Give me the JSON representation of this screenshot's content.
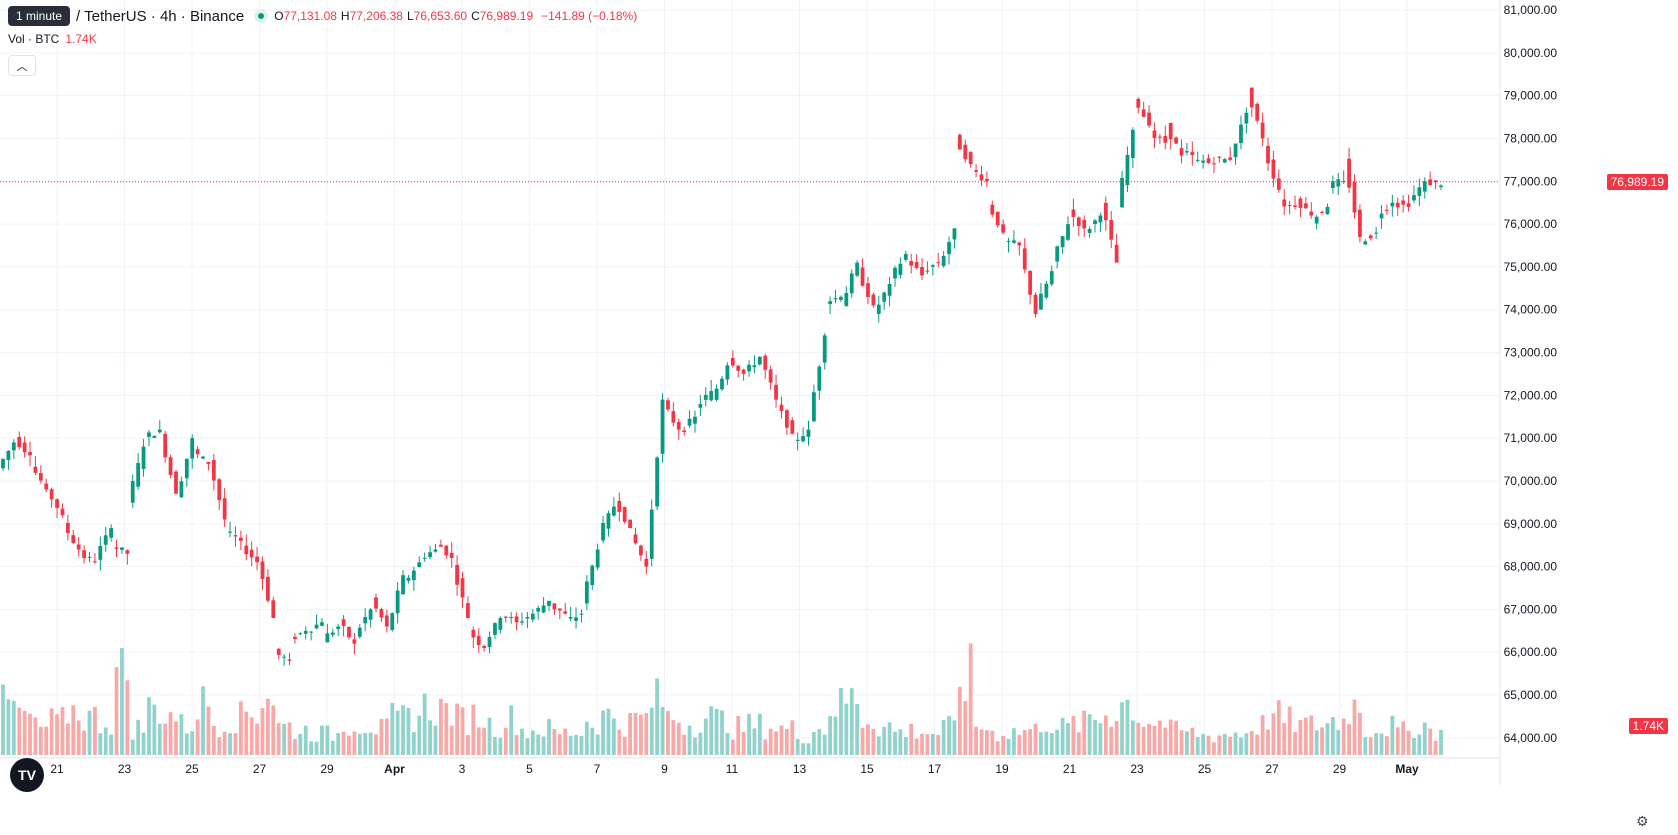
{
  "header": {
    "interval_badge": "1 minute",
    "symbol": "/ TetherUS · 4h · Binance",
    "open_label": "O",
    "open": "77,131.08",
    "high_label": "H",
    "high": "77,206.38",
    "low_label": "L",
    "low": "76,653.60",
    "close_label": "C",
    "close": "76,989.19",
    "change": "−141.89 (−0.18%)"
  },
  "volume_row": {
    "label": "Vol · BTC",
    "value": "1.74K"
  },
  "last_price_tag": "76,989.19",
  "volume_tag": "1.74K",
  "colors": {
    "up": "#089981",
    "down": "#f23645",
    "vol_up": "#92d2cc",
    "vol_down": "#f7a9a7",
    "grid": "#f0f3fa"
  },
  "icons": {
    "logo": "tradingview-logo-icon",
    "collapse": "chevron-up-icon",
    "settings": "gear-icon"
  },
  "chart_data": {
    "type": "candlestick",
    "ylim": [
      63600,
      81000
    ],
    "y_ticks": [
      "81,000.00",
      "80,000.00",
      "79,000.00",
      "78,000.00",
      "77,000.00",
      "76,000.00",
      "75,000.00",
      "74,000.00",
      "73,000.00",
      "72,000.00",
      "71,000.00",
      "70,000.00",
      "69,000.00",
      "68,000.00",
      "67,000.00",
      "66,000.00",
      "65,000.00",
      "64,000.00"
    ],
    "x_ticks": [
      "21",
      "23",
      "25",
      "27",
      "29",
      "Apr",
      "3",
      "5",
      "7",
      "9",
      "11",
      "13",
      "15",
      "17",
      "19",
      "21",
      "23",
      "25",
      "27",
      "29",
      "May"
    ],
    "last_price": 76989.19,
    "anchors": [
      [
        70300,
        70900
      ],
      [
        71000,
        70600
      ],
      [
        70400,
        69800
      ],
      [
        69800,
        69200
      ],
      [
        69000,
        68400
      ],
      [
        68300,
        68100
      ],
      [
        68200,
        68900
      ],
      [
        68500,
        68300
      ],
      [
        69500,
        70800
      ],
      [
        71000,
        71200
      ],
      [
        71100,
        69700
      ],
      [
        69600,
        71000
      ],
      [
        70700,
        70400
      ],
      [
        70500,
        69100
      ],
      [
        68800,
        68600
      ],
      [
        68500,
        68100
      ],
      [
        68200,
        66800
      ],
      [
        66000,
        65800
      ],
      [
        66300,
        66500
      ],
      [
        66500,
        66700
      ],
      [
        66300,
        66600
      ],
      [
        66700,
        66200
      ],
      [
        66400,
        67000
      ],
      [
        67200,
        66600
      ],
      [
        66500,
        67800
      ],
      [
        67600,
        68100
      ],
      [
        68200,
        68400
      ],
      [
        68600,
        68200
      ],
      [
        68100,
        66800
      ],
      [
        66500,
        66100
      ],
      [
        66200,
        66800
      ],
      [
        66900,
        66700
      ],
      [
        66700,
        66900
      ],
      [
        66900,
        67200
      ],
      [
        67100,
        66900
      ],
      [
        66700,
        66900
      ],
      [
        67200,
        68400
      ],
      [
        68700,
        69400
      ],
      [
        69600,
        68900
      ],
      [
        68800,
        68000
      ],
      [
        68100,
        71900
      ],
      [
        71800,
        71200
      ],
      [
        71100,
        71500
      ],
      [
        71700,
        72100
      ],
      [
        71900,
        72700
      ],
      [
        72900,
        72500
      ],
      [
        72500,
        72900
      ],
      [
        72900,
        71900
      ],
      [
        71800,
        71100
      ],
      [
        70900,
        71200
      ],
      [
        71400,
        73400
      ],
      [
        74200,
        74300
      ],
      [
        74100,
        75100
      ],
      [
        74900,
        74100
      ],
      [
        73900,
        74600
      ],
      [
        74700,
        75300
      ],
      [
        75200,
        74800
      ],
      [
        74900,
        75100
      ],
      [
        75000,
        75900
      ],
      [
        78000,
        77400
      ],
      [
        77300,
        77000
      ],
      [
        76500,
        75800
      ],
      [
        75600,
        75500
      ],
      [
        75400,
        73900
      ],
      [
        74000,
        74900
      ],
      [
        75100,
        76000
      ],
      [
        76300,
        75900
      ],
      [
        75800,
        76200
      ],
      [
        76500,
        75100
      ],
      [
        76400,
        78200
      ],
      [
        79000,
        78300
      ],
      [
        78100,
        77900
      ],
      [
        78300,
        77600
      ],
      [
        77700,
        77500
      ],
      [
        77500,
        77400
      ],
      [
        77500,
        77500
      ],
      [
        77600,
        78600
      ],
      [
        79100,
        78000
      ],
      [
        77800,
        76800
      ],
      [
        76500,
        76400
      ],
      [
        76600,
        76200
      ],
      [
        76100,
        76400
      ],
      [
        76900,
        77000
      ],
      [
        77500,
        75700
      ],
      [
        75600,
        75800
      ],
      [
        76200,
        76500
      ],
      [
        76500,
        76400
      ],
      [
        76500,
        77000
      ],
      [
        77000,
        76900
      ]
    ],
    "volume_ylim": [
      0,
      1200
    ],
    "volume_anchors": [
      380,
      300,
      210,
      260,
      340,
      290,
      260,
      620,
      210,
      360,
      310,
      230,
      400,
      250,
      290,
      330,
      470,
      220,
      190,
      170,
      160,
      250,
      240,
      200,
      280,
      310,
      370,
      350,
      280,
      300,
      230,
      280,
      190,
      200,
      170,
      180,
      260,
      300,
      250,
      280,
      420,
      290,
      240,
      300,
      270,
      210,
      230,
      220,
      200,
      150,
      200,
      380,
      430,
      280,
      220,
      180,
      190,
      170,
      210,
      600,
      220,
      170,
      180,
      190,
      260,
      210,
      240,
      280,
      330,
      400,
      280,
      250,
      190,
      170,
      150,
      160,
      170,
      230,
      300,
      260,
      230,
      240,
      270,
      380,
      200,
      220,
      180,
      230,
      190
    ]
  }
}
